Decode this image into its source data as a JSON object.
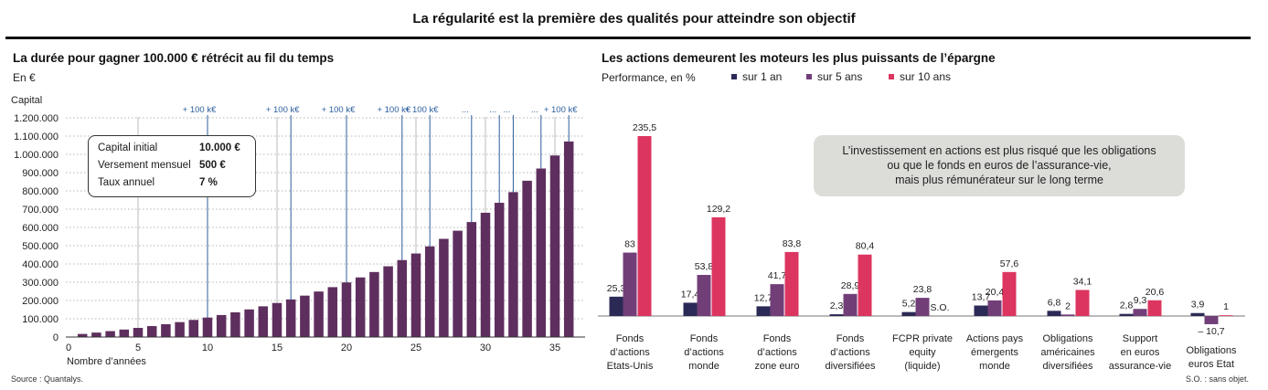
{
  "header": {
    "title": "La régularité est la première des qualités pour atteindre son objectif"
  },
  "left_panel": {
    "title": "La durée pour gagner 100.000 € rétrécit au fil du temps",
    "unit": "En €",
    "info_box": {
      "rows": [
        {
          "label": "Capital initial",
          "value": "10.000 €"
        },
        {
          "label": "Versement mensuel",
          "value": "500 €"
        },
        {
          "label": "Taux annuel",
          "value": "7 %"
        }
      ]
    },
    "source": "Source : Quantalys."
  },
  "right_panel": {
    "title": "Les actions demeurent les moteurs les plus puissants de l’épargne",
    "subtitle": "Performance, en %",
    "note_lines": [
      "L’investissement en actions est plus risqué que les obligations",
      "ou que le fonds en euros de l’assurance-vie,",
      "mais plus rémunérateur sur le long terme"
    ],
    "footnote": "S.O. : sans objet."
  },
  "chart_data": [
    {
      "type": "bar",
      "title": "La durée pour gagner 100.000 € rétrécit au fil du temps",
      "ylabel": "Capital",
      "xlabel": "Nombre d’années",
      "x": [
        1,
        2,
        3,
        4,
        5,
        6,
        7,
        8,
        9,
        10,
        11,
        12,
        13,
        14,
        15,
        16,
        17,
        18,
        19,
        20,
        21,
        22,
        23,
        24,
        25,
        26,
        27,
        28,
        29,
        30,
        31,
        32,
        33,
        34,
        35,
        36
      ],
      "values": [
        16900,
        24400,
        32400,
        40900,
        50000,
        59800,
        70300,
        81600,
        93600,
        106500,
        120400,
        135200,
        151100,
        168100,
        186300,
        205800,
        226700,
        249100,
        273000,
        298700,
        326300,
        355800,
        387300,
        421100,
        457300,
        496100,
        537600,
        582000,
        629500,
        680400,
        734900,
        793200,
        855600,
        922400,
        993900,
        1070400
      ],
      "ylim": [
        0,
        1200000
      ],
      "yticks": [
        0,
        100000,
        200000,
        300000,
        400000,
        500000,
        600000,
        700000,
        800000,
        900000,
        1000000,
        1100000,
        1200000
      ],
      "ytick_labels": [
        "0",
        "100.000",
        "200.000",
        "300.000",
        "400.000",
        "500.000",
        "600.000",
        "700.000",
        "800.000",
        "900.000",
        "1.000.000",
        "1.100.000",
        "1.200.000"
      ],
      "xticks": [
        0,
        5,
        10,
        15,
        20,
        25,
        30,
        35
      ],
      "xlim": [
        0,
        36.5
      ],
      "grid": "horizontal dotted",
      "milestones": [
        {
          "year": 10,
          "label": "+ 100 k€"
        },
        {
          "year": 16,
          "label": "+ 100 k€"
        },
        {
          "year": 20,
          "label": "+ 100 k€"
        },
        {
          "year": 24,
          "label": "+ 100 k€"
        },
        {
          "year": 26,
          "label": "+ 100 k€"
        },
        {
          "year": 29,
          "label": "..."
        },
        {
          "year": 31,
          "label": "..."
        },
        {
          "year": 32,
          "label": "..."
        },
        {
          "year": 34,
          "label": "..."
        },
        {
          "year": 36,
          "label": "+ 100 k€"
        }
      ],
      "colors": {
        "bar": "#5e2f5e",
        "milestone_line": "#2b5f9e",
        "reference_line": "#aaaaaa"
      }
    },
    {
      "type": "bar",
      "title": "Les actions demeurent les moteurs les plus puissants de l’épargne",
      "ylabel": "Performance, en %",
      "categories": [
        [
          "Fonds",
          "d’actions",
          "Etats-Unis"
        ],
        [
          "Fonds",
          "d’actions",
          "monde"
        ],
        [
          "Fonds",
          "d’actions",
          "zone euro"
        ],
        [
          "Fonds",
          "d’actions",
          "diversifiées"
        ],
        [
          "FCPR private",
          "equity",
          "(liquide)"
        ],
        [
          "Actions pays",
          "émergents",
          "monde"
        ],
        [
          "Obligations",
          "américaines",
          "diversifiées"
        ],
        [
          "Support",
          "en euros",
          "assurance-vie"
        ],
        [
          "Obligations",
          "euros Etat"
        ]
      ],
      "series": [
        {
          "name": "sur 1 an",
          "color": "#2b2a57",
          "values": [
            25.3,
            17.4,
            12.7,
            2.3,
            5.2,
            13.7,
            6.8,
            2.8,
            3.9
          ],
          "labels": [
            "25,3",
            "17,4",
            "12,7",
            "2,3",
            "5,2",
            "13,7",
            "6,8",
            "2,8",
            "3,9"
          ]
        },
        {
          "name": "sur 5 ans",
          "color": "#723e78",
          "values": [
            83,
            53.8,
            41.7,
            28.9,
            23.8,
            20.4,
            2,
            9.3,
            -10.7
          ],
          "labels": [
            "83",
            "53,8",
            "41,7",
            "28,9",
            "23,8",
            "20,4",
            "2",
            "9,3",
            "– 10,7"
          ]
        },
        {
          "name": "sur 10 ans",
          "color": "#dc3560",
          "values": [
            235.5,
            129.2,
            83.8,
            80.4,
            null,
            57.6,
            34.1,
            20.6,
            1
          ],
          "labels": [
            "235,5",
            "129,2",
            "83,8",
            "80,4",
            "S.O.",
            "57,6",
            "34,1",
            "20,6",
            "1"
          ]
        }
      ],
      "legend": "top"
    }
  ]
}
